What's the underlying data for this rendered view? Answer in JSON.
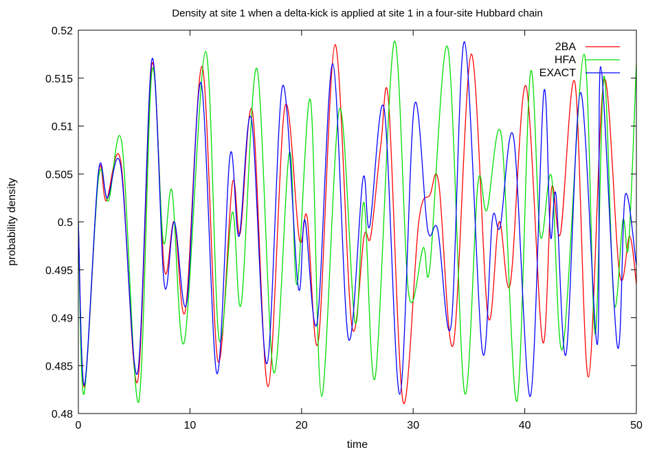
{
  "chart_data": {
    "type": "line",
    "title": "Density at site 1 when a delta-kick is applied at site 1 in a four-site Hubbard chain",
    "xlabel": "time",
    "ylabel": "probability density",
    "xlim": [
      0,
      50
    ],
    "ylim": [
      0.48,
      0.52
    ],
    "x_ticks": [
      0,
      10,
      20,
      30,
      40,
      50
    ],
    "x_tick_labels": [
      "0",
      "10",
      "20",
      "30",
      "40",
      "50"
    ],
    "y_ticks": [
      0.48,
      0.485,
      0.49,
      0.495,
      0.5,
      0.505,
      0.51,
      0.515,
      0.52
    ],
    "y_tick_labels": [
      "0.48",
      "0.485",
      "0.49",
      "0.495",
      "0.5",
      "0.505",
      "0.51",
      "0.515",
      "0.52"
    ],
    "grid": false,
    "legend_position": "top-right",
    "series": [
      {
        "name": "2BA",
        "color": "#ff0000",
        "points": [
          [
            0,
            0.5
          ],
          [
            0.55,
            0.4828
          ],
          [
            1.8,
            0.505
          ],
          [
            2.5,
            0.5022
          ],
          [
            3.8,
            0.5063
          ],
          [
            5.3,
            0.4833
          ],
          [
            6.6,
            0.5165
          ],
          [
            7.7,
            0.4951
          ],
          [
            8.6,
            0.5
          ],
          [
            9.6,
            0.4908
          ],
          [
            11.1,
            0.5162
          ],
          [
            12.5,
            0.4855
          ],
          [
            13.8,
            0.504
          ],
          [
            14.5,
            0.4988
          ],
          [
            15.6,
            0.5115
          ],
          [
            17.0,
            0.4828
          ],
          [
            18.5,
            0.512
          ],
          [
            19.8,
            0.4982
          ],
          [
            20.5,
            0.5005
          ],
          [
            21.5,
            0.4875
          ],
          [
            23.0,
            0.5185
          ],
          [
            24.5,
            0.4892
          ],
          [
            25.6,
            0.4985
          ],
          [
            26.2,
            0.4985
          ],
          [
            27.1,
            0.508
          ],
          [
            27.8,
            0.5125
          ],
          [
            29.1,
            0.4812
          ],
          [
            30.5,
            0.5
          ],
          [
            31.5,
            0.5028
          ],
          [
            32.3,
            0.504
          ],
          [
            33.6,
            0.4872
          ],
          [
            35.2,
            0.5175
          ],
          [
            36.7,
            0.4902
          ],
          [
            37.7,
            0.5
          ],
          [
            38.7,
            0.4935
          ],
          [
            40.1,
            0.5142
          ],
          [
            41.6,
            0.4875
          ],
          [
            42.4,
            0.5035
          ],
          [
            43.2,
            0.4988
          ],
          [
            44.5,
            0.5145
          ],
          [
            45.7,
            0.4838
          ],
          [
            47.1,
            0.5148
          ],
          [
            48.5,
            0.4945
          ],
          [
            49.4,
            0.4985
          ],
          [
            50.0,
            0.4935
          ]
        ]
      },
      {
        "name": "HFA",
        "color": "#00dd00",
        "points": [
          [
            0,
            0.5
          ],
          [
            0.5,
            0.482
          ],
          [
            1.8,
            0.5045
          ],
          [
            2.7,
            0.5022
          ],
          [
            3.9,
            0.5082
          ],
          [
            5.4,
            0.4812
          ],
          [
            6.6,
            0.5158
          ],
          [
            7.6,
            0.498
          ],
          [
            8.4,
            0.5032
          ],
          [
            9.5,
            0.4875
          ],
          [
            11.4,
            0.5178
          ],
          [
            12.6,
            0.4878
          ],
          [
            13.8,
            0.501
          ],
          [
            14.6,
            0.4915
          ],
          [
            16.0,
            0.516
          ],
          [
            17.5,
            0.4843
          ],
          [
            18.9,
            0.5072
          ],
          [
            19.6,
            0.4935
          ],
          [
            20.8,
            0.5127
          ],
          [
            21.8,
            0.4818
          ],
          [
            23.4,
            0.5118
          ],
          [
            24.8,
            0.4895
          ],
          [
            25.6,
            0.502
          ],
          [
            26.6,
            0.4838
          ],
          [
            28.3,
            0.5188
          ],
          [
            29.6,
            0.4925
          ],
          [
            30.9,
            0.4973
          ],
          [
            31.5,
            0.4953
          ],
          [
            33.1,
            0.5182
          ],
          [
            34.6,
            0.4822
          ],
          [
            35.8,
            0.504
          ],
          [
            36.6,
            0.5012
          ],
          [
            37.9,
            0.509
          ],
          [
            39.3,
            0.4813
          ],
          [
            40.5,
            0.5155
          ],
          [
            41.4,
            0.4985
          ],
          [
            42.4,
            0.5047
          ],
          [
            43.4,
            0.4868
          ],
          [
            45.3,
            0.5175
          ],
          [
            46.3,
            0.4883
          ],
          [
            47.1,
            0.5152
          ],
          [
            48.0,
            0.4915
          ],
          [
            48.8,
            0.5002
          ],
          [
            49.3,
            0.4975
          ],
          [
            50.0,
            0.5165
          ]
        ]
      },
      {
        "name": "EXACT",
        "color": "#0000ff",
        "points": [
          [
            0,
            0.5
          ],
          [
            0.55,
            0.483
          ],
          [
            1.8,
            0.5052
          ],
          [
            2.6,
            0.5025
          ],
          [
            3.8,
            0.5058
          ],
          [
            5.3,
            0.4842
          ],
          [
            6.6,
            0.517
          ],
          [
            7.7,
            0.4935
          ],
          [
            8.6,
            0.5
          ],
          [
            9.7,
            0.4915
          ],
          [
            11.0,
            0.5145
          ],
          [
            12.4,
            0.4842
          ],
          [
            13.6,
            0.507
          ],
          [
            14.4,
            0.4985
          ],
          [
            15.5,
            0.5108
          ],
          [
            16.9,
            0.4852
          ],
          [
            18.3,
            0.5142
          ],
          [
            19.7,
            0.4932
          ],
          [
            20.3,
            0.5002
          ],
          [
            21.4,
            0.4895
          ],
          [
            22.8,
            0.5165
          ],
          [
            24.2,
            0.4878
          ],
          [
            25.5,
            0.5045
          ],
          [
            26.1,
            0.4995
          ],
          [
            27.4,
            0.5118
          ],
          [
            28.8,
            0.482
          ],
          [
            30.1,
            0.5121
          ],
          [
            31.3,
            0.4992
          ],
          [
            32.2,
            0.4992
          ],
          [
            33.4,
            0.4892
          ],
          [
            34.6,
            0.5188
          ],
          [
            36.2,
            0.4865
          ],
          [
            37.1,
            0.5003
          ],
          [
            37.8,
            0.4995
          ],
          [
            39.0,
            0.5088
          ],
          [
            40.5,
            0.4818
          ],
          [
            41.7,
            0.5135
          ],
          [
            42.3,
            0.4985
          ],
          [
            42.8,
            0.5028
          ],
          [
            43.7,
            0.4862
          ],
          [
            45.0,
            0.5135
          ],
          [
            46.5,
            0.4872
          ],
          [
            46.8,
            0.5162
          ],
          [
            48.3,
            0.487
          ],
          [
            49.0,
            0.5028
          ],
          [
            50.0,
            0.4955
          ]
        ]
      }
    ]
  }
}
